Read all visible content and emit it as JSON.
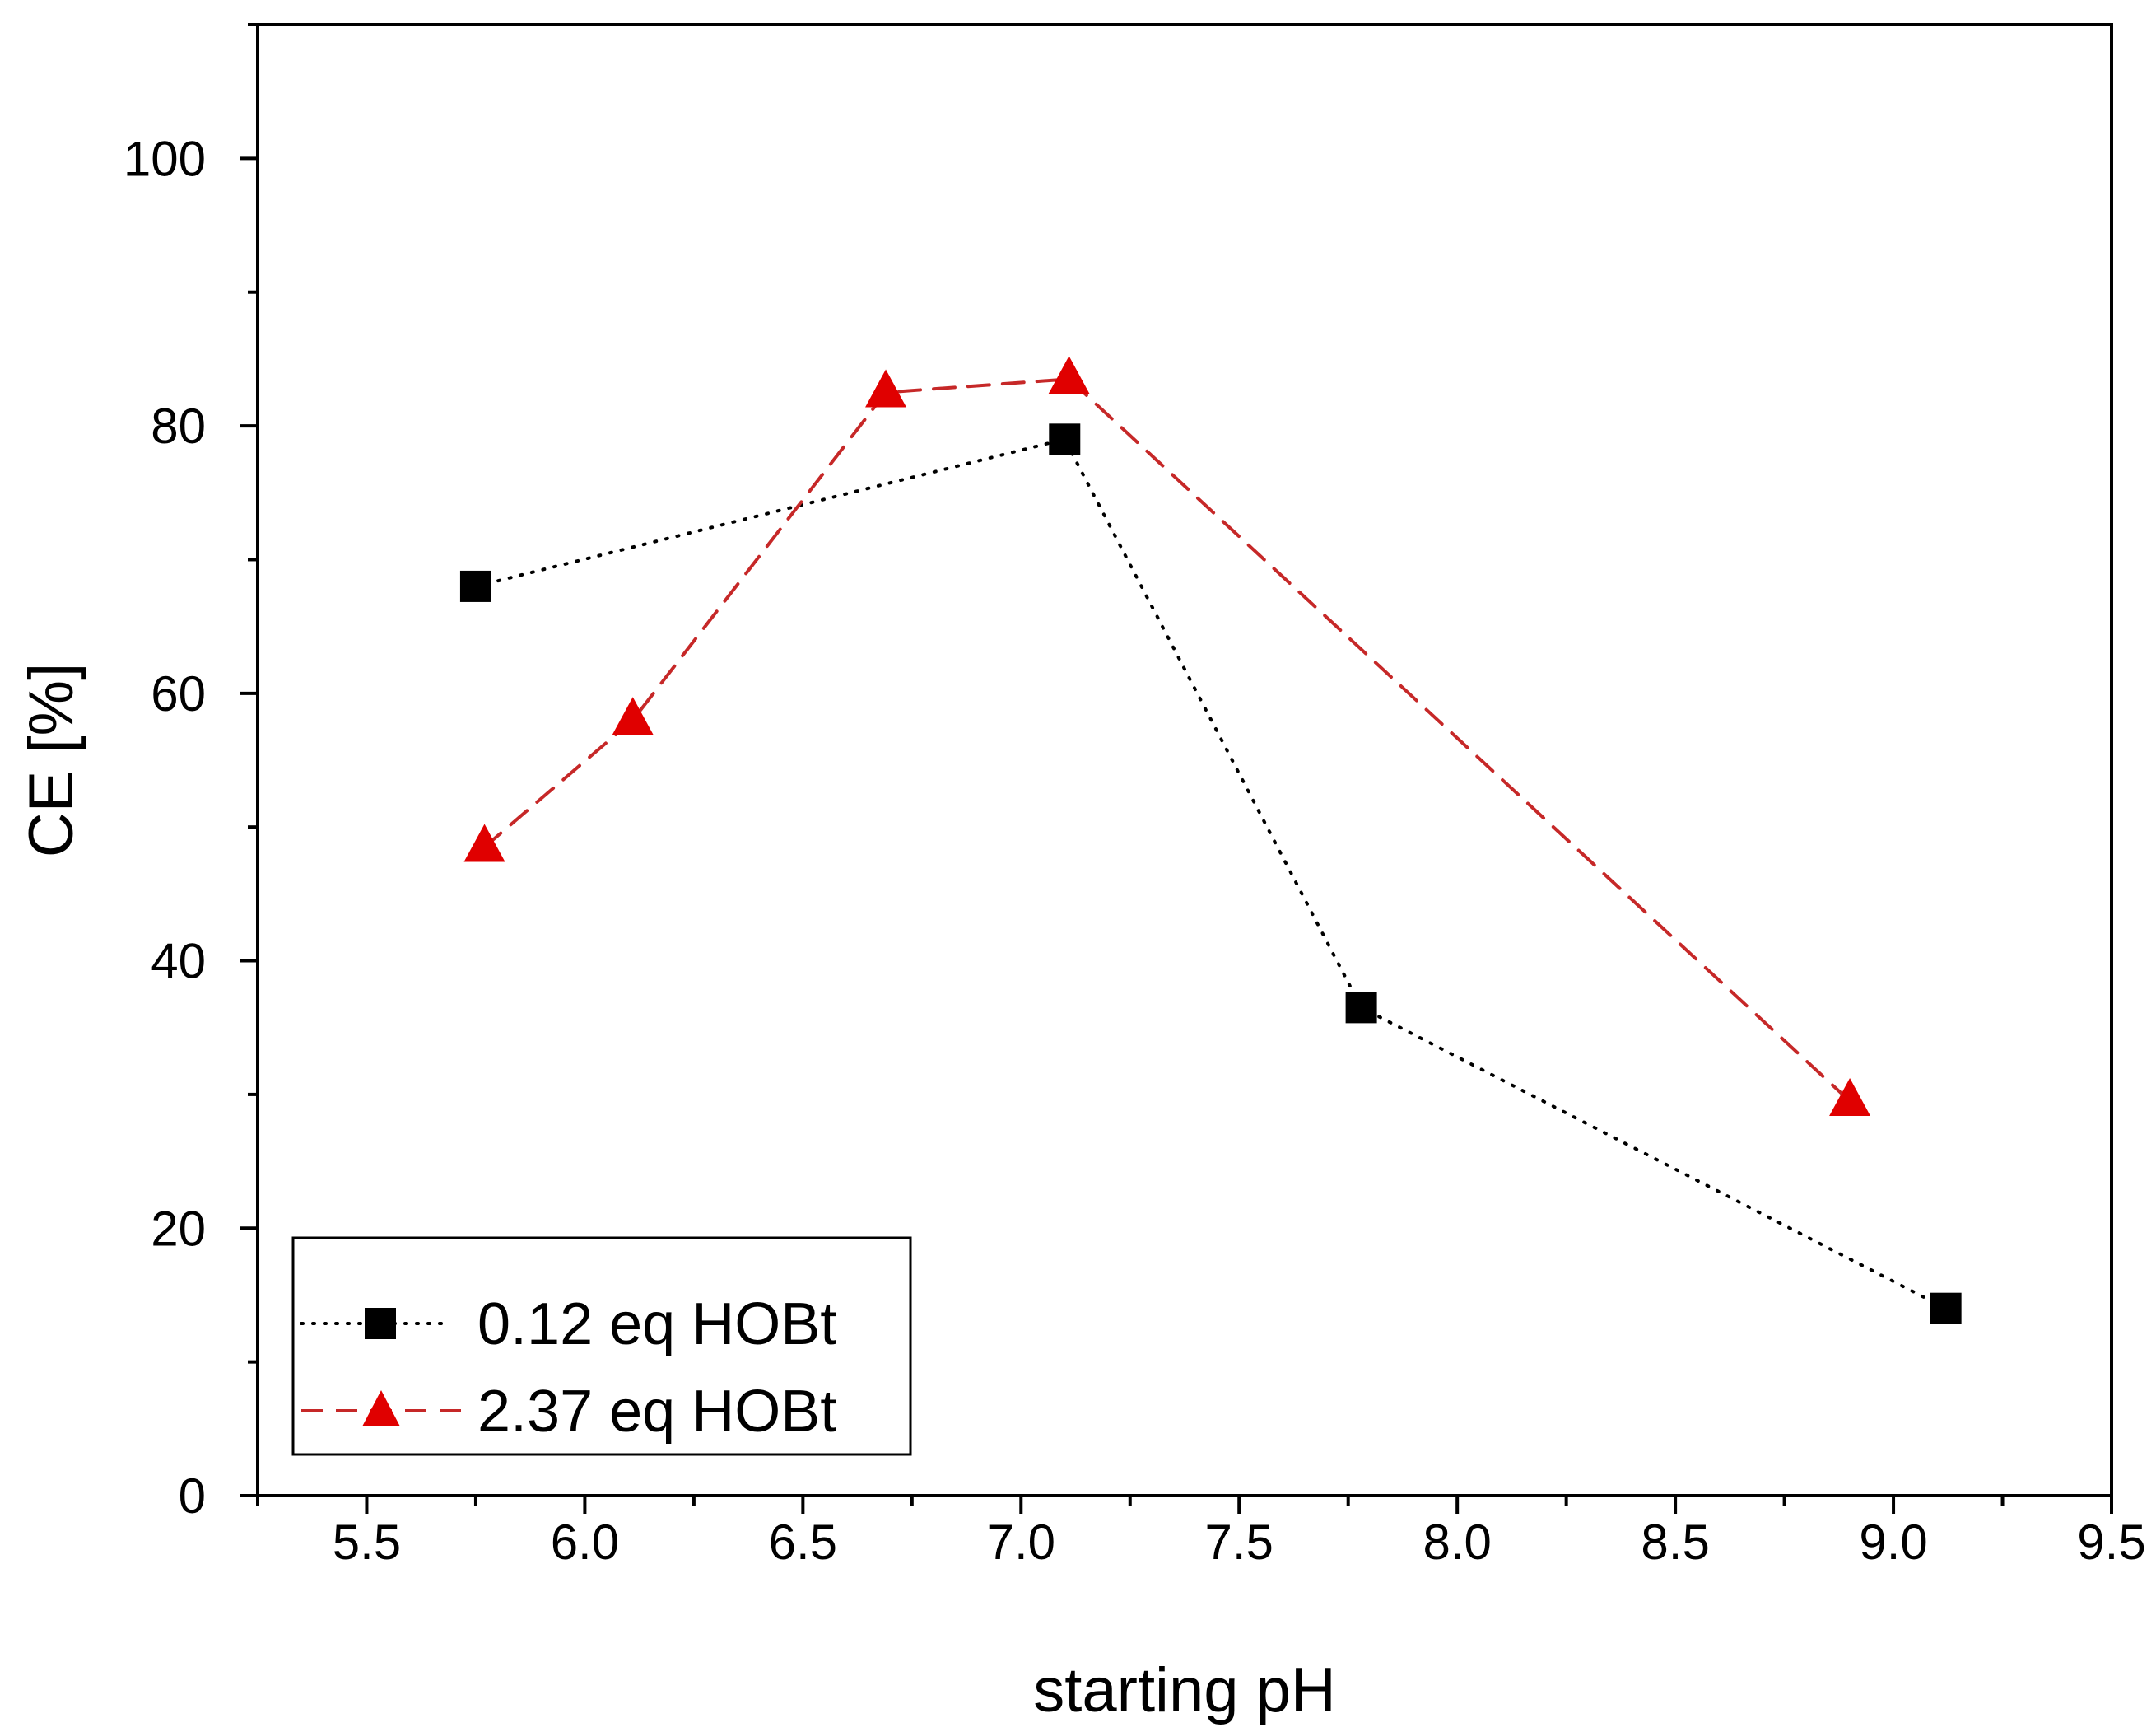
{
  "chart_data": {
    "type": "line",
    "title": "",
    "xlabel": "starting pH",
    "ylabel": "CE [%]",
    "xlim": [
      5.25,
      9.5
    ],
    "ylim": [
      0,
      110
    ],
    "x_ticks": [
      "5.5",
      "6.0",
      "6.5",
      "7.0",
      "7.5",
      "8.0",
      "8.5",
      "9.0",
      "9.5"
    ],
    "x_tick_values": [
      5.5,
      6.0,
      6.5,
      7.0,
      7.5,
      8.0,
      8.5,
      9.0,
      9.5
    ],
    "y_ticks": [
      "0",
      "20",
      "40",
      "60",
      "80",
      "100"
    ],
    "y_tick_values": [
      0,
      20,
      40,
      60,
      80,
      100
    ],
    "grid": false,
    "legend_position": "bottom-left",
    "series": [
      {
        "name": "0.12 eq HOBt",
        "color": "#000000",
        "marker": "square",
        "line_style": "dotted",
        "x": [
          5.75,
          7.1,
          7.78,
          9.12
        ],
        "y": [
          68,
          79,
          36.5,
          14
        ]
      },
      {
        "name": "2.37 eq HOBt",
        "color": "#e00000",
        "line_color": "#c62828",
        "marker": "triangle",
        "line_style": "dashed",
        "x": [
          5.77,
          6.11,
          6.69,
          7.11,
          8.9
        ],
        "y": [
          48.5,
          58,
          82.5,
          83.5,
          29.5
        ]
      }
    ]
  }
}
